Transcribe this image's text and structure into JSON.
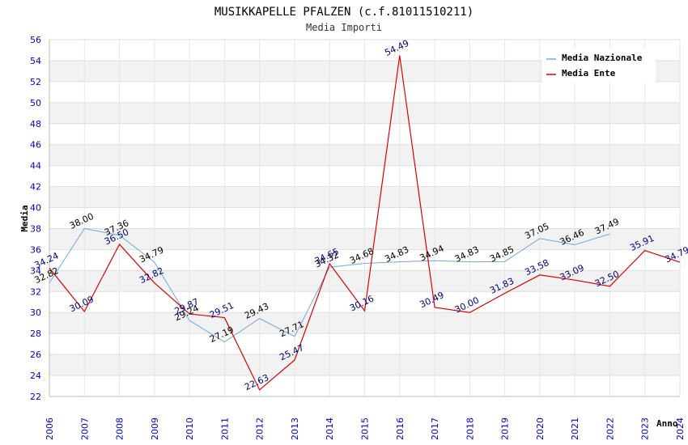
{
  "chart_data": {
    "type": "line",
    "title": "MUSIKKAPELLE PFALZEN (c.f.81011510211)",
    "subtitle": "Media Importi",
    "ylabel": "Media",
    "xlabel": "Anno",
    "ylim": [
      22,
      56
    ],
    "ytick_step": 2,
    "categories": [
      "2006",
      "2007",
      "2008",
      "2009",
      "2010",
      "2011",
      "2012",
      "2013",
      "2014",
      "2015",
      "2016",
      "2017",
      "2018",
      "2019",
      "2020",
      "2021",
      "2022",
      "2023",
      "2024"
    ],
    "series": [
      {
        "name": "Media Nazionale",
        "color": "#6fa8e0",
        "label_color": "#000000",
        "values": [
          32.82,
          38.0,
          37.36,
          34.79,
          29.24,
          27.19,
          29.43,
          27.71,
          34.32,
          34.68,
          34.83,
          34.94,
          34.83,
          34.85,
          37.05,
          36.46,
          37.49,
          null,
          null
        ],
        "labels": [
          "32.82",
          "38.00",
          "37.36",
          "34.79",
          "29.24",
          "27.19",
          "29.43",
          "27.71",
          "34.32",
          "34.68",
          "34.83",
          "34.94",
          "34.83",
          "34.85",
          "37.05",
          "36.46",
          "37.49",
          null,
          null
        ]
      },
      {
        "name": "Media Ente",
        "color": "#dd0000",
        "label_color": "#000080",
        "values": [
          34.24,
          30.09,
          36.5,
          32.82,
          29.87,
          29.51,
          22.63,
          25.47,
          34.65,
          30.16,
          54.49,
          30.49,
          30.0,
          31.83,
          33.58,
          33.09,
          32.5,
          35.91,
          34.79
        ],
        "labels": [
          "34.24",
          "30.09",
          "36.50",
          "32.82",
          "29.87",
          "29.51",
          "22.63",
          "25.47",
          "34.65",
          "30.16",
          "54.49",
          "30.49",
          "30.00",
          "31.83",
          "33.58",
          "33.09",
          "32.50",
          "35.91",
          "34.79"
        ]
      }
    ],
    "legend_position": "top-right",
    "colors": {
      "band": "#f2f2f2",
      "grid": "#dddddd",
      "tick_text": "#0000cc"
    }
  }
}
